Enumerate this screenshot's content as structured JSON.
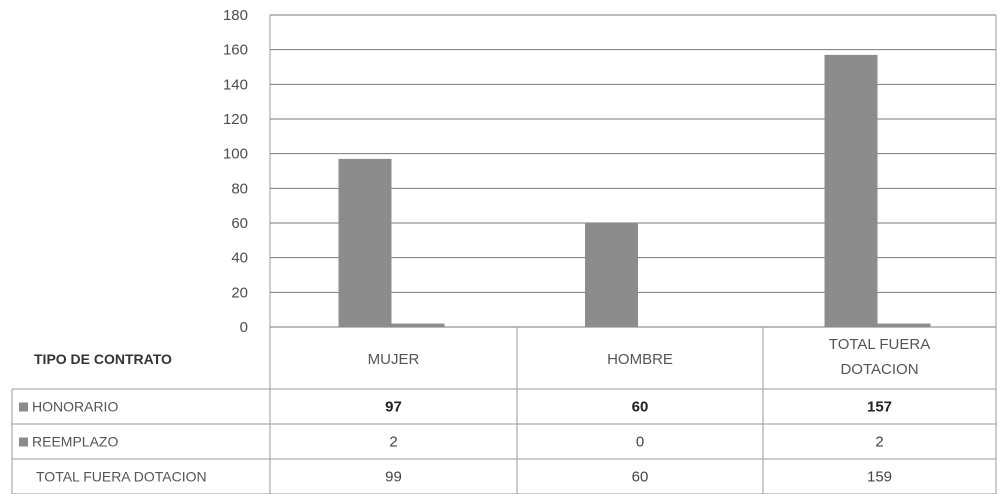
{
  "chart_data": {
    "type": "bar",
    "categories": [
      "MUJER",
      "HOMBRE",
      "TOTAL FUERA DOTACION"
    ],
    "category_lines": [
      [
        "MUJER"
      ],
      [
        "HOMBRE"
      ],
      [
        "TOTAL FUERA",
        "DOTACION"
      ]
    ],
    "series": [
      {
        "name": "HONORARIO",
        "values": [
          97,
          60,
          157
        ],
        "color": "#8c8c8c"
      },
      {
        "name": "REEMPLAZO",
        "values": [
          2,
          0,
          2
        ],
        "color": "#8c8c8c"
      }
    ],
    "table_header": "TIPO DE CONTRATO",
    "total_row": {
      "name": "TOTAL FUERA DOTACION",
      "values": [
        99,
        60,
        159
      ]
    },
    "yticks": [
      0,
      20,
      40,
      60,
      80,
      100,
      120,
      140,
      160,
      180
    ],
    "ylim": [
      0,
      180
    ],
    "grid": true,
    "legend": "data-table"
  }
}
